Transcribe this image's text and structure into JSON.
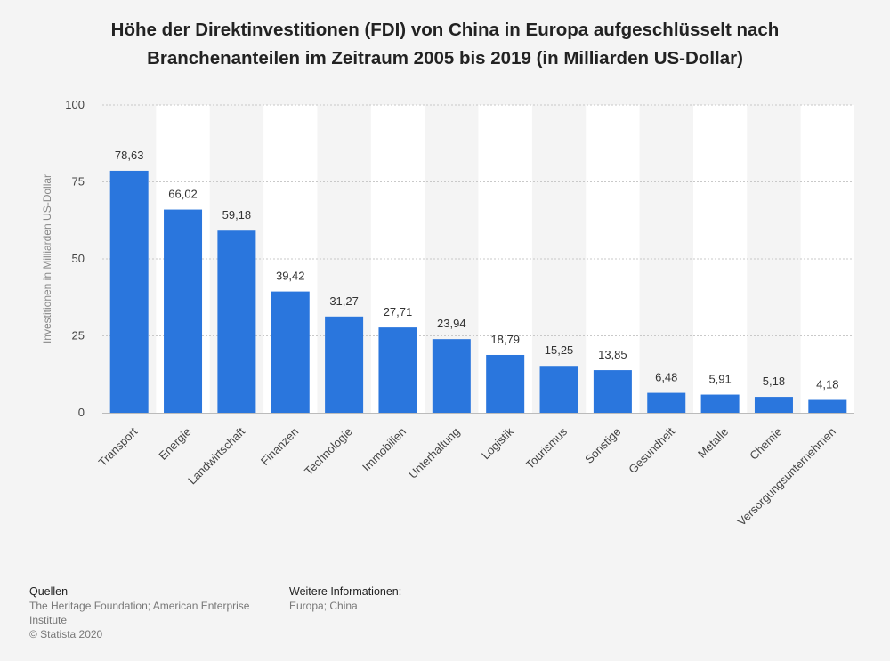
{
  "title_lines": [
    "Höhe der Direktinvestitionen (FDI) von China in Europa aufgeschlüsselt nach",
    "Branchenanteilen im Zeitraum 2005 bis 2019 (in Milliarden US-Dollar)"
  ],
  "chart_data": {
    "type": "bar",
    "title": "Höhe der Direktinvestitionen (FDI) von China in Europa aufgeschlüsselt nach Branchenanteilen im Zeitraum 2005 bis 2019 (in Milliarden US-Dollar)",
    "xlabel": "",
    "ylabel": "Investitionen in Milliarden US-Dollar",
    "categories": [
      "Transport",
      "Energie",
      "Landwirtschaft",
      "Finanzen",
      "Technologie",
      "Immobilien",
      "Unterhaltung",
      "Logistik",
      "Tourismus",
      "Sonstige",
      "Gesundheit",
      "Metalle",
      "Chemie",
      "Versorgungsunternehmen"
    ],
    "values": [
      78.63,
      66.02,
      59.18,
      39.42,
      31.27,
      27.71,
      23.94,
      18.79,
      15.25,
      13.85,
      6.48,
      5.91,
      5.18,
      4.18
    ],
    "value_labels": [
      "78,63",
      "66,02",
      "59,18",
      "39,42",
      "31,27",
      "27,71",
      "23,94",
      "18,79",
      "15,25",
      "13,85",
      "6,48",
      "5,91",
      "5,18",
      "4,18"
    ],
    "ylim": [
      0,
      100
    ],
    "yticks": [
      0,
      25,
      50,
      75,
      100
    ],
    "grid": true,
    "bar_color": "#2a76dd"
  },
  "footer": {
    "sources_heading": "Quellen",
    "sources_text": "The Heritage Foundation; American Enterprise Institute",
    "copyright": "© Statista 2020",
    "more_heading": "Weitere Informationen:",
    "more_text": "Europa; China"
  }
}
